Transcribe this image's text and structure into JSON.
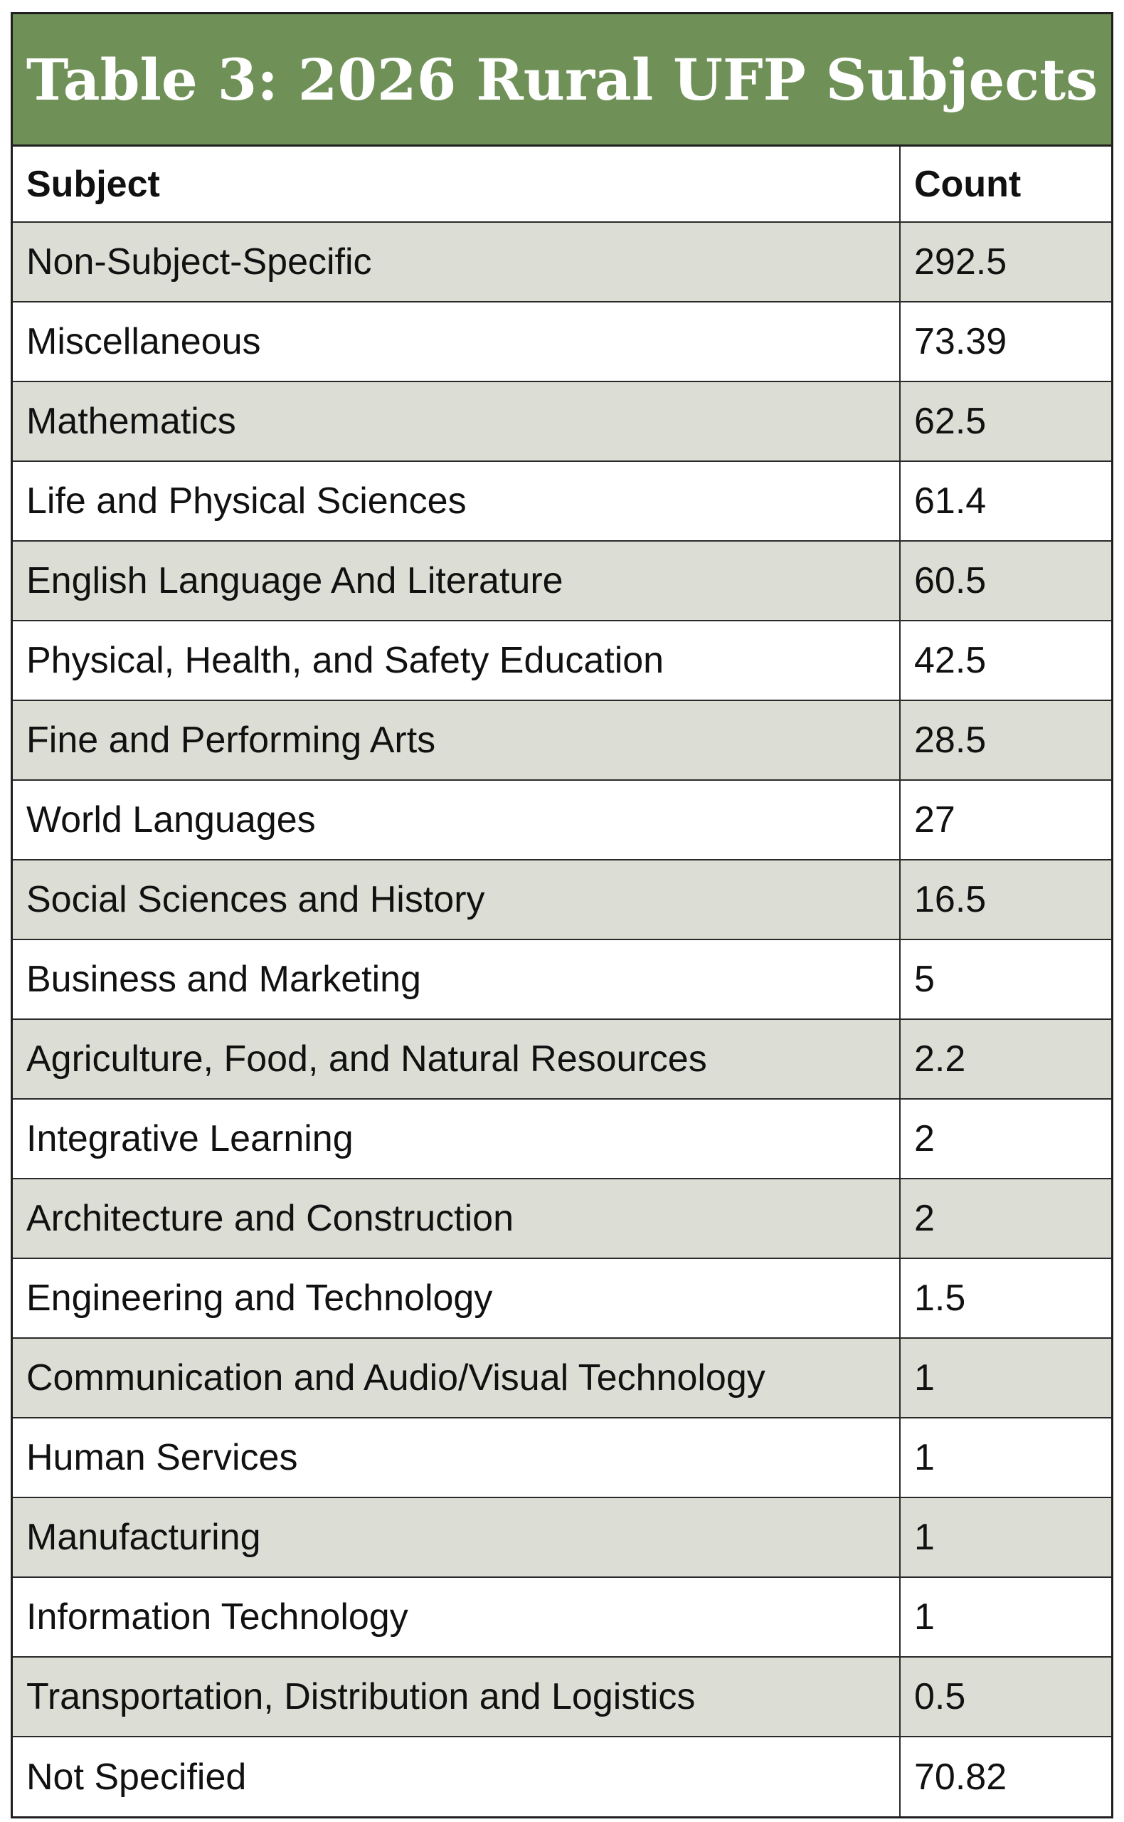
{
  "chart_data": {
    "type": "table",
    "title": "Table 3: 2026 Rural UFP Subjects",
    "columns": [
      "Subject",
      "Count"
    ],
    "rows": [
      {
        "subject": "Non-Subject-Specific",
        "count": "292.5"
      },
      {
        "subject": "Miscellaneous",
        "count": "73.39"
      },
      {
        "subject": "Mathematics",
        "count": "62.5"
      },
      {
        "subject": "Life and Physical Sciences",
        "count": "61.4"
      },
      {
        "subject": "English Language And Literature",
        "count": "60.5"
      },
      {
        "subject": "Physical, Health, and Safety Education",
        "count": "42.5"
      },
      {
        "subject": "Fine and Performing Arts",
        "count": "28.5"
      },
      {
        "subject": "World Languages",
        "count": "27"
      },
      {
        "subject": "Social Sciences and History",
        "count": "16.5"
      },
      {
        "subject": "Business and Marketing",
        "count": "5"
      },
      {
        "subject": "Agriculture, Food, and Natural Resources",
        "count": "2.2"
      },
      {
        "subject": "Integrative Learning",
        "count": "2"
      },
      {
        "subject": "Architecture and Construction",
        "count": "2"
      },
      {
        "subject": "Engineering and Technology",
        "count": "1.5"
      },
      {
        "subject": "Communication and Audio/Visual Technology",
        "count": "1"
      },
      {
        "subject": "Human Services",
        "count": "1"
      },
      {
        "subject": "Manufacturing",
        "count": "1"
      },
      {
        "subject": "Information Technology",
        "count": "1"
      },
      {
        "subject": "Transportation, Distribution and Logistics",
        "count": "0.5"
      },
      {
        "subject": "Not Specified",
        "count": "70.82"
      }
    ]
  },
  "colors": {
    "title_background": "#6f9158",
    "title_text": "#ffffff",
    "shaded_row": "#dcded5",
    "plain_row": "#ffffff",
    "border": "#1f1f1f"
  }
}
